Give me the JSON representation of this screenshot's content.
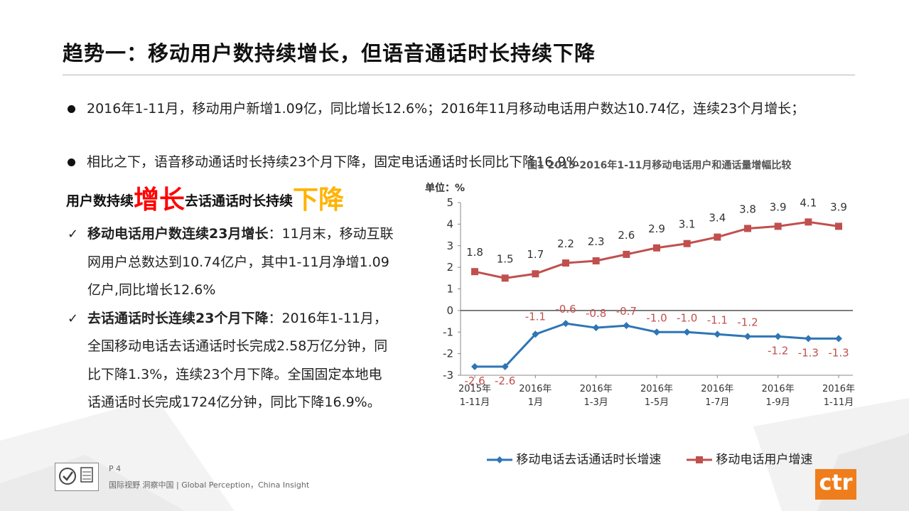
{
  "title": "趋势一：移动用户数持续增长，但语音通话时长持续下降",
  "bullets": [
    "2016年1-11月，移动用户新增1.09亿，同比增长12.6%；2016年11月移动电话用户数达10.74亿，连续23个月增长；",
    "相比之下，语音移动通话时长持续23个月下降，固定电话通话时长同比下降16.9%"
  ],
  "headline": {
    "part1": "用户数持续",
    "part2": "增长",
    "part3": "去话通话时长持续",
    "part4": "下降"
  },
  "checks": [
    {
      "lead": "移动电话用户数连续23月增长",
      "text": "：11月末，移动互联网用户总数达到10.74亿户，其中1-11月净增1.09亿户,同比增长12.6%"
    },
    {
      "lead": "去话通话时长连续23个月下降",
      "text": "：2016年1-11月，全国移动电话去话通话时长完成2.58万亿分钟，同比下降1.3%，连续23个月下降。全国固定本地电话通话时长完成1724亿分钟，同比下降16.9%。"
    }
  ],
  "colors": {
    "red_series": "#c0504d",
    "blue_series": "#2e75b6",
    "accent_red": "#ff0000",
    "accent_orange": "#ffb300",
    "ctr_orange": "#f07d1c"
  },
  "chart_data": {
    "type": "line",
    "title": "图1 2015-2016年1-11月移动电话用户和通话量增幅比较",
    "ylabel": "单位：%",
    "ylim": [
      -3,
      5
    ],
    "yticks": [
      "5",
      "4",
      "3",
      "2",
      "1",
      "0",
      "-1",
      "-2",
      "-3"
    ],
    "xticks": [
      {
        "line1": "2015年",
        "line2": "1-11月"
      },
      {
        "line1": "2016年",
        "line2": "1月"
      },
      {
        "line1": "2016年",
        "line2": "1-3月"
      },
      {
        "line1": "2016年",
        "line2": "1-5月"
      },
      {
        "line1": "2016年",
        "line2": "1-7月"
      },
      {
        "line1": "2016年",
        "line2": "1-9月"
      },
      {
        "line1": "2016年",
        "line2": "1-11月"
      }
    ],
    "series": [
      {
        "name": "移动电话去话通话时长增速",
        "values": [
          -2.6,
          -2.6,
          -1.1,
          -0.6,
          -0.8,
          -0.7,
          -1.0,
          -1.0,
          -1.1,
          -1.2,
          -1.2,
          -1.3,
          -1.3
        ],
        "labels": [
          "-2.6",
          "-2.6",
          "-1.1",
          "-0.6",
          "-0.8",
          "-0.7",
          "-1.0",
          "-1.0",
          "-1.1",
          "-1.2",
          "-1.2",
          "-1.3",
          "-1.3"
        ]
      },
      {
        "name": "移动电话用户增速",
        "values": [
          1.8,
          1.5,
          1.7,
          2.2,
          2.3,
          2.6,
          2.9,
          3.1,
          3.4,
          3.8,
          3.9,
          4.1,
          3.9
        ],
        "labels": [
          "1.8",
          "1.5",
          "1.7",
          "2.2",
          "2.3",
          "2.6",
          "2.9",
          "3.1",
          "3.4",
          "3.8",
          "3.9",
          "4.1",
          "3.9"
        ]
      }
    ]
  },
  "footer": {
    "page": "P 4",
    "slogan": "国际视野  洞察中国 |  Global Perception，China Insight",
    "brand": "ctr"
  }
}
